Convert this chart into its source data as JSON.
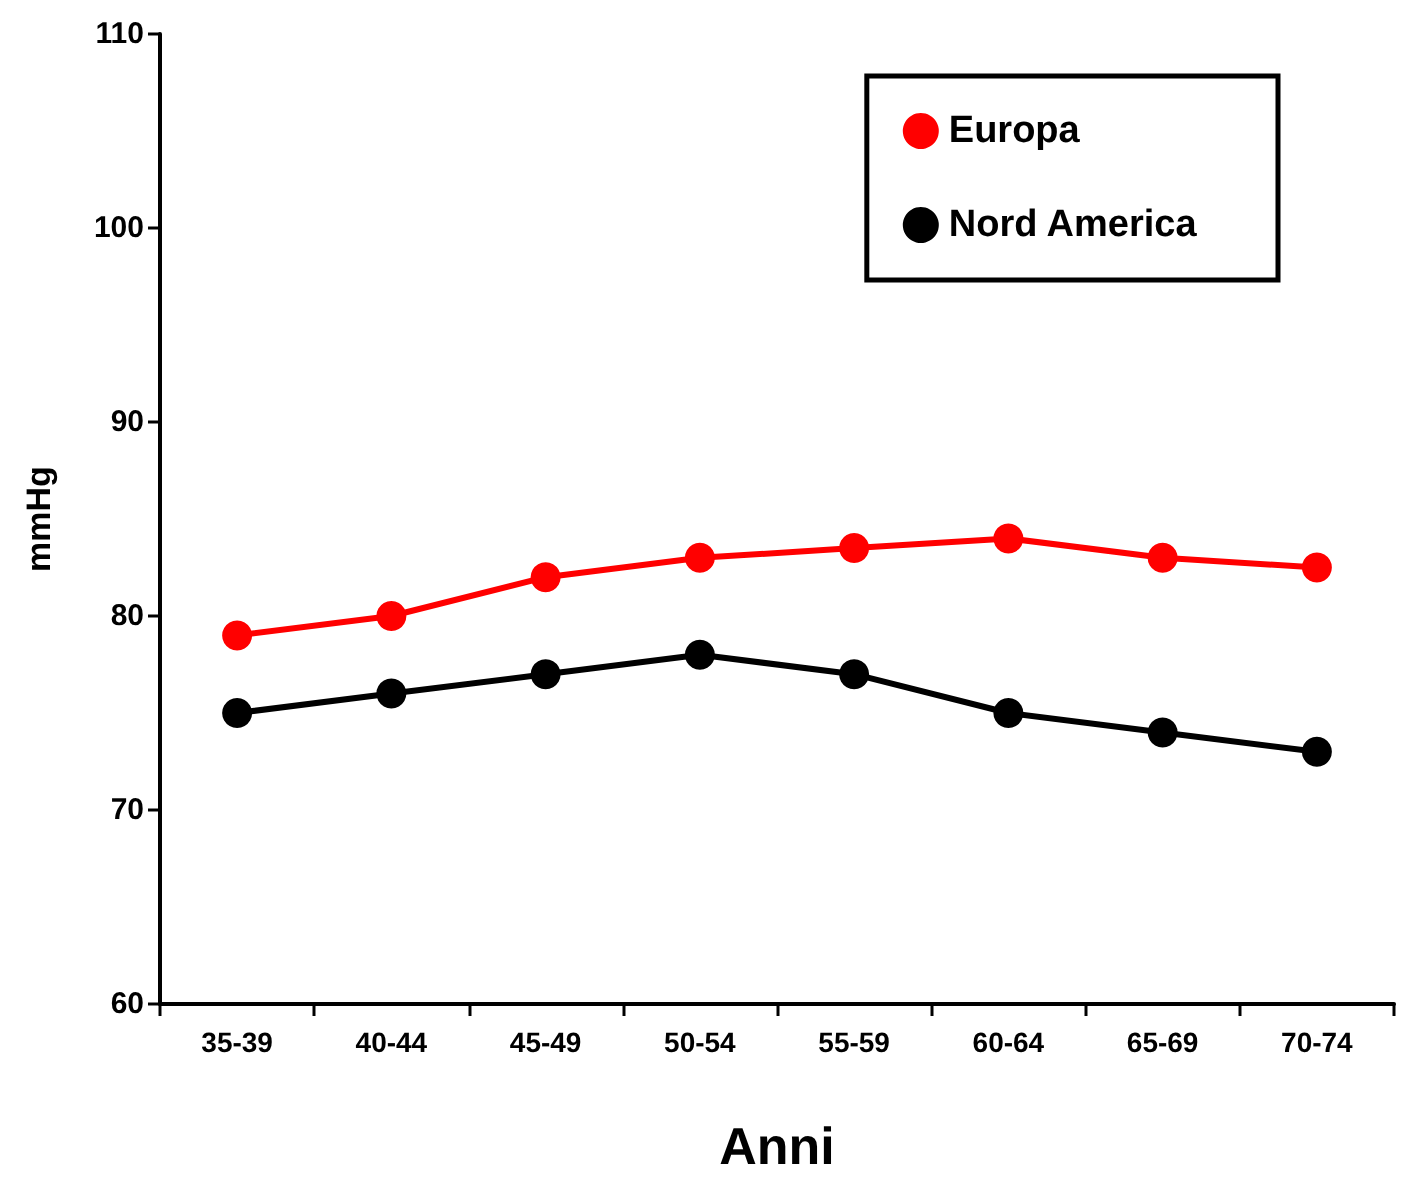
{
  "chart_data": {
    "type": "line",
    "xlabel": "Anni",
    "ylabel": "mmHg",
    "categories": [
      "35-39",
      "40-44",
      "45-49",
      "50-54",
      "55-59",
      "60-64",
      "65-69",
      "70-74"
    ],
    "series": [
      {
        "name": "Europa",
        "color": "#ff0000",
        "values": [
          79,
          80,
          82,
          83,
          83.5,
          84,
          83,
          82.5
        ]
      },
      {
        "name": "Nord America",
        "color": "#000000",
        "values": [
          75,
          76,
          77,
          78,
          77,
          75,
          74,
          73
        ]
      }
    ],
    "ylim": [
      60,
      110
    ],
    "yticks": [
      60,
      70,
      80,
      90,
      100,
      110
    ],
    "grid": false,
    "legend": "top right",
    "marker": "circle"
  }
}
